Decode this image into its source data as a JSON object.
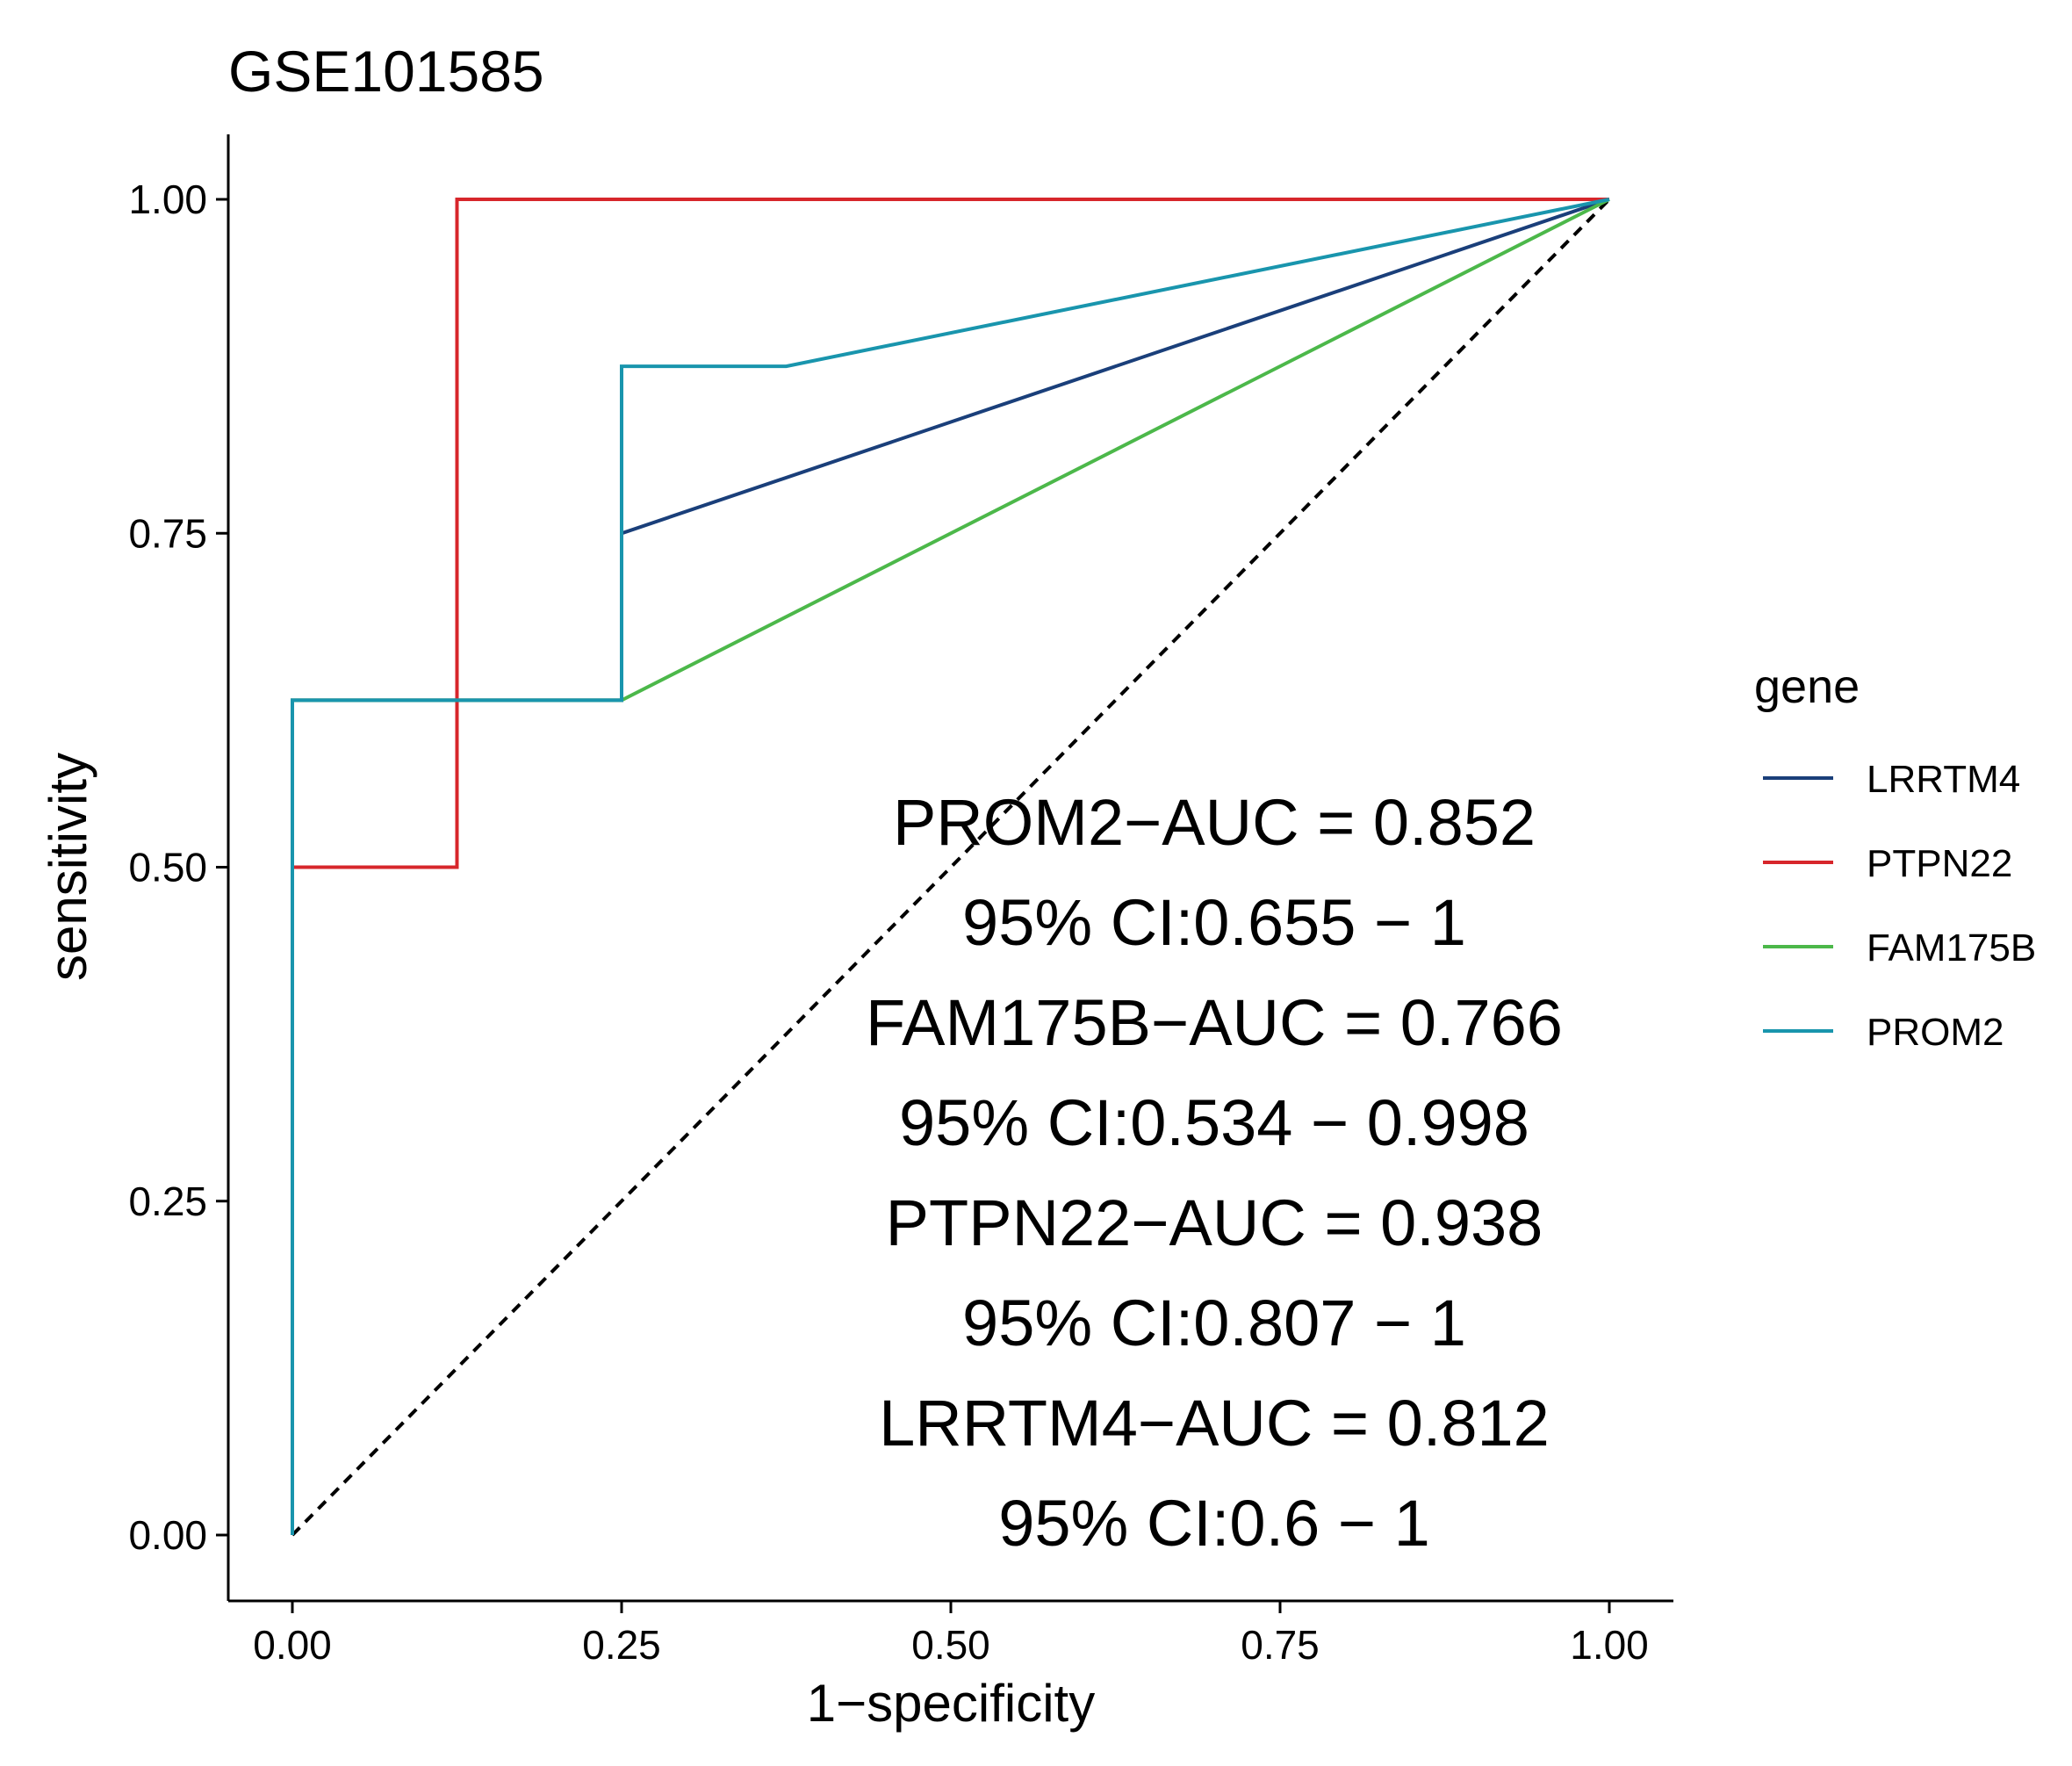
{
  "chart_data": {
    "type": "line",
    "title": "GSE101585",
    "xlabel": "1−specificity",
    "ylabel": "sensitivity",
    "xlim": [
      0,
      1
    ],
    "ylim": [
      0,
      1
    ],
    "x_ticks": [
      "0.00",
      "0.25",
      "0.50",
      "0.75",
      "1.00"
    ],
    "y_ticks": [
      "0.00",
      "0.25",
      "0.50",
      "0.75",
      "1.00"
    ],
    "grid": false,
    "legend": {
      "title": "gene",
      "position": "right",
      "entries": [
        "LRRTM4",
        "PTPN22",
        "FAM175B",
        "PROM2"
      ]
    },
    "series": [
      {
        "name": "LRRTM4",
        "color": "#1a3f7a",
        "points": [
          [
            0,
            0
          ],
          [
            0,
            0.625
          ],
          [
            0.25,
            0.625
          ],
          [
            0.25,
            0.75
          ],
          [
            1,
            1
          ]
        ]
      },
      {
        "name": "PTPN22",
        "color": "#d7262b",
        "points": [
          [
            0,
            0
          ],
          [
            0,
            0.5
          ],
          [
            0.125,
            0.5
          ],
          [
            0.125,
            1
          ],
          [
            1,
            1
          ]
        ]
      },
      {
        "name": "FAM175B",
        "color": "#4cb84a",
        "points": [
          [
            0,
            0
          ],
          [
            0,
            0.625
          ],
          [
            0.25,
            0.625
          ],
          [
            1,
            1
          ]
        ]
      },
      {
        "name": "PROM2",
        "color": "#1995ad",
        "points": [
          [
            0,
            0
          ],
          [
            0,
            0.625
          ],
          [
            0.25,
            0.625
          ],
          [
            0.25,
            0.875
          ],
          [
            0.375,
            0.875
          ],
          [
            1,
            1
          ]
        ]
      }
    ],
    "reference_line": {
      "style": "dashed",
      "color": "#000000",
      "points": [
        [
          0,
          0
        ],
        [
          1,
          1
        ]
      ]
    },
    "annotations": [
      "PROM2−AUC = 0.852",
      "95% CI:0.655 − 1",
      "FAM175B−AUC = 0.766",
      "95% CI:0.534 − 0.998",
      "PTPN22−AUC = 0.938",
      "95% CI:0.807 − 1",
      "LRRTM4−AUC = 0.812",
      "95% CI:0.6 − 1"
    ]
  }
}
